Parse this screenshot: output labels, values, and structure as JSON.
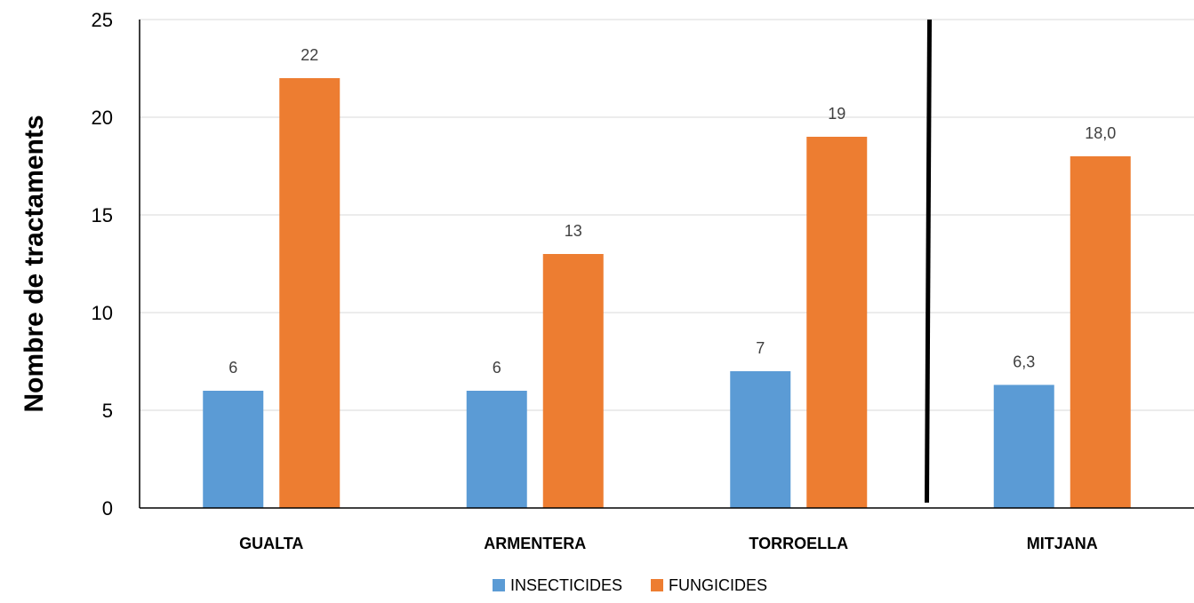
{
  "chart_data": {
    "type": "bar",
    "title": "",
    "xlabel": "",
    "ylabel": "Nombre de tractaments",
    "ylim": [
      0,
      25
    ],
    "yticks": [
      "0",
      "5",
      "10",
      "15",
      "20",
      "25"
    ],
    "grid": true,
    "legend_position": "bottom",
    "categories": [
      "GUALTA",
      "ARMENTERA",
      "TORROELLA",
      "MITJANA"
    ],
    "series": [
      {
        "name": "INSECTICIDES",
        "color": "#5B9BD5",
        "values": [
          6,
          6,
          7,
          6.3
        ],
        "labels": [
          "6",
          "6",
          "7",
          "6,3"
        ]
      },
      {
        "name": "FUNGICIDES",
        "color": "#ED7D31",
        "values": [
          22,
          13,
          19,
          18
        ],
        "labels": [
          "22",
          "13",
          "19",
          "18,0"
        ]
      }
    ],
    "separator": "vertical black line between TORROELLA and MITJANA"
  }
}
